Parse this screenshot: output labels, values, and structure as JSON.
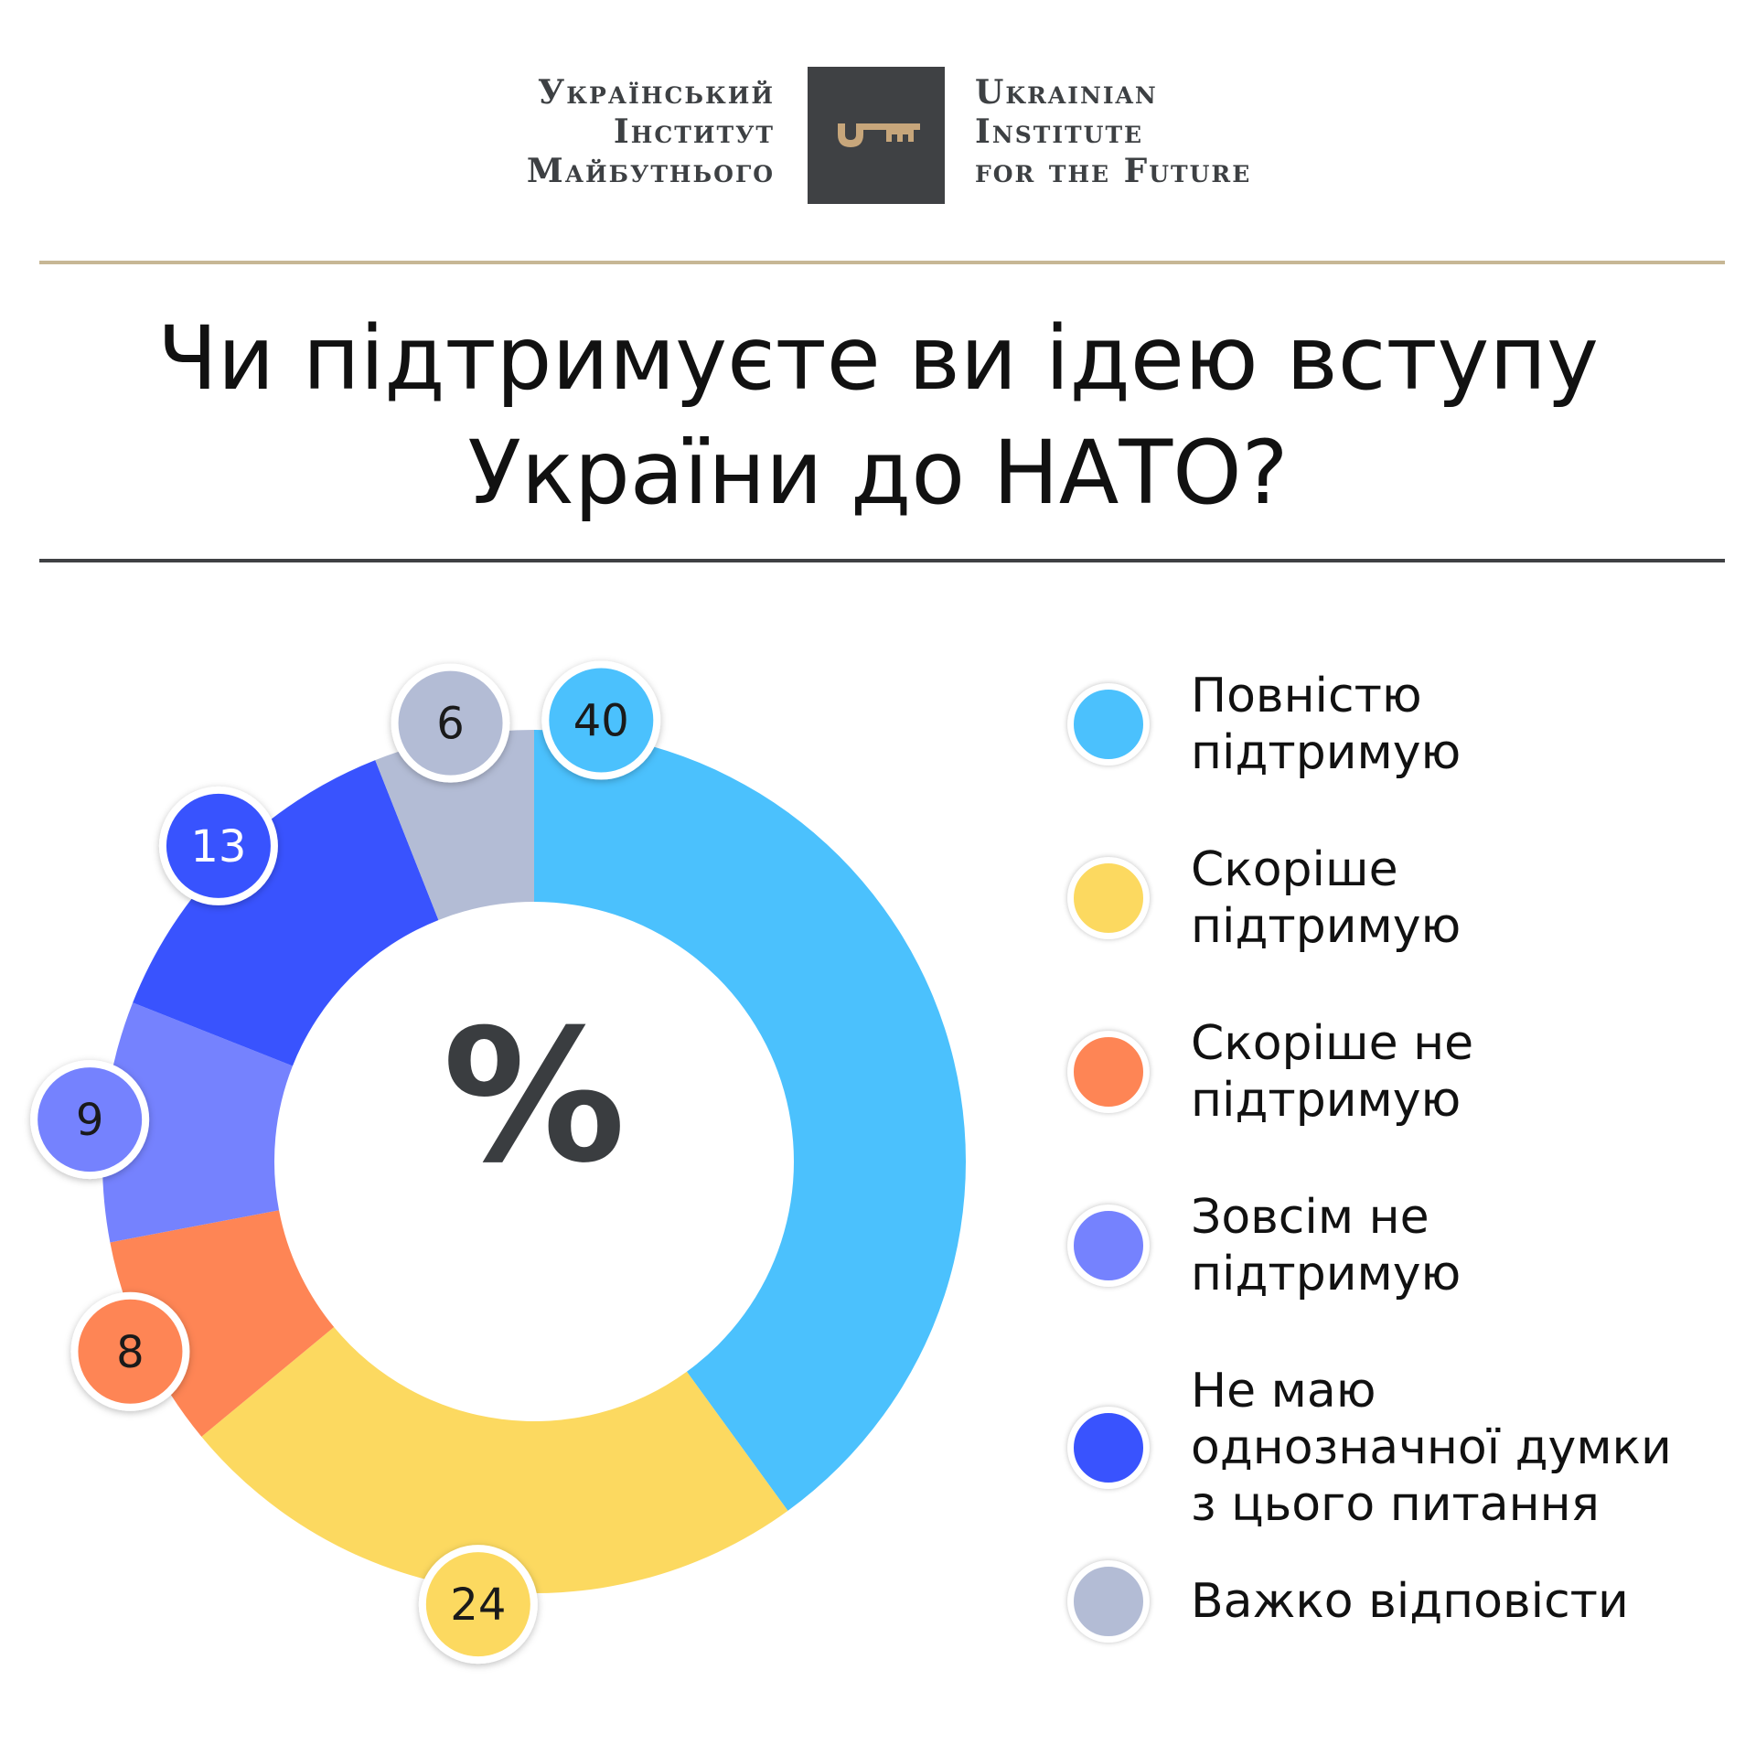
{
  "logo": {
    "ua_lines": [
      "Український",
      "Інститут",
      "Майбутнього"
    ],
    "en_lines": [
      "Ukrainian",
      "Institute",
      "for the Future"
    ],
    "key_icon": "key-icon",
    "box_color": "#3f4144",
    "key_color": "#c7a67b"
  },
  "title_lines": [
    "Чи підтримуєте ви ідею вступу",
    "України до НАТО?"
  ],
  "chart_data": {
    "type": "pie",
    "variant": "donut",
    "center_label": "%",
    "title": "Чи підтримуєте ви ідею вступу України до НАТО?",
    "legend_placement": "right",
    "slices": [
      {
        "label_lines": [
          "Повністю",
          "підтримую"
        ],
        "value": 40,
        "color": "#4bc1fd"
      },
      {
        "label_lines": [
          "Скоріше",
          "підтримую"
        ],
        "value": 24,
        "color": "#fcd960"
      },
      {
        "label_lines": [
          "Скоріше не",
          "підтримую"
        ],
        "value": 8,
        "color": "#fe8555"
      },
      {
        "label_lines": [
          "Зовсім не",
          "підтримую"
        ],
        "value": 9,
        "color": "#7582fe"
      },
      {
        "label_lines": [
          "Не маю",
          "однозначної думки",
          "з цього питання"
        ],
        "value": 13,
        "color": "#3953fe"
      },
      {
        "label_lines": [
          "Важко відповісти"
        ],
        "value": 6,
        "color": "#b3bcd5"
      }
    ]
  }
}
